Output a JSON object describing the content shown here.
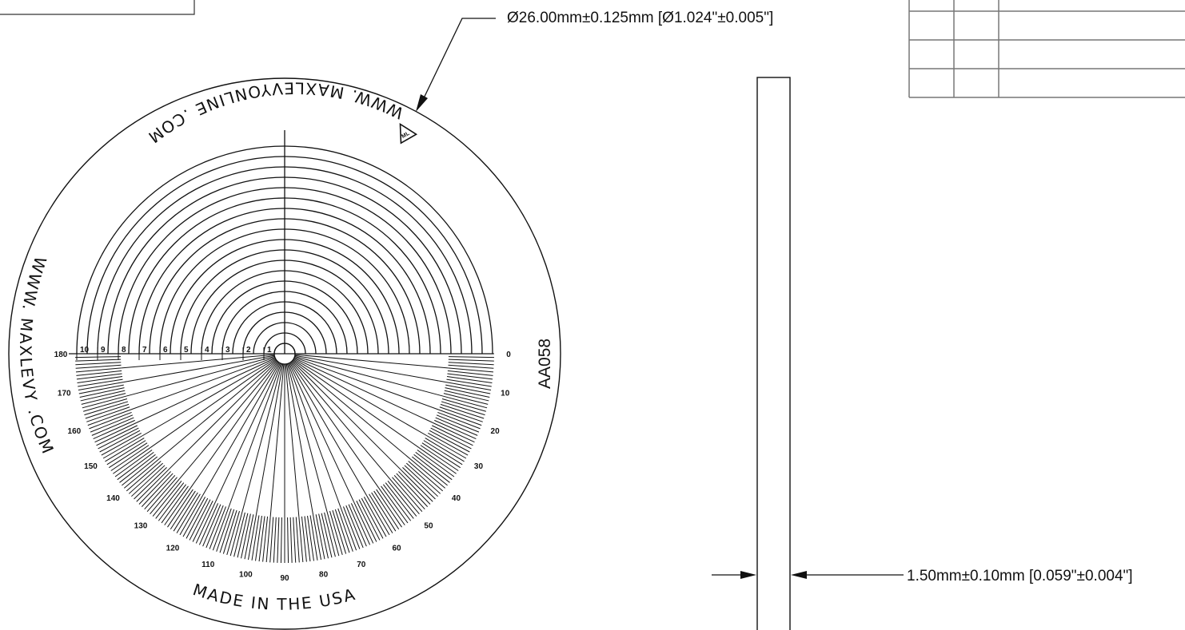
{
  "diameter_callout": "Ø26.00mm±0.125mm [Ø1.024\"±0.005\"]",
  "thickness_callout": "1.50mm±0.10mm [0.059\"±0.004\"]",
  "reticle": {
    "top_arc_text": "WWW. MAXLEVYONLINE .COM",
    "left_arc_text": "WWW. MAXLEVY .COM",
    "bottom_arc_text": "MADE IN THE USA",
    "part_code": "AA058",
    "logo": "Max Levy logo"
  },
  "radial_scale_labels": [
    "1",
    "2",
    "3",
    "4",
    "5",
    "6",
    "7",
    "8",
    "9",
    "10"
  ],
  "degree_labels": [
    "0",
    "10",
    "20",
    "30",
    "40",
    "50",
    "60",
    "70",
    "80",
    "90",
    "100",
    "110",
    "120",
    "130",
    "140",
    "150",
    "160",
    "170",
    "180"
  ]
}
